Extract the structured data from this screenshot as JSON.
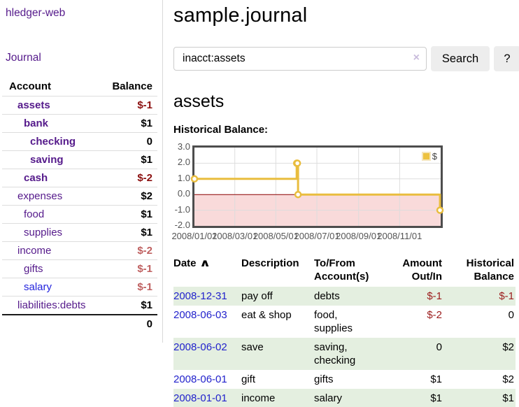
{
  "app": {
    "brand": "hledger-web",
    "nav_journal": "Journal"
  },
  "sidebar": {
    "columns": {
      "account": "Account",
      "balance": "Balance"
    },
    "accounts": [
      {
        "name": "assets",
        "depth": 1,
        "balance": "$-1",
        "matched": true,
        "tone": "strong-neg",
        "link": "purple"
      },
      {
        "name": "bank",
        "depth": 2,
        "balance": "$1",
        "matched": true,
        "tone": "pos",
        "link": "purple"
      },
      {
        "name": "checking",
        "depth": 3,
        "balance": "0",
        "matched": true,
        "tone": "pos",
        "link": "purple"
      },
      {
        "name": "saving",
        "depth": 3,
        "balance": "$1",
        "matched": true,
        "tone": "pos",
        "link": "purple"
      },
      {
        "name": "cash",
        "depth": 2,
        "balance": "$-2",
        "matched": true,
        "tone": "strong-neg",
        "link": "purple"
      },
      {
        "name": "expenses",
        "depth": 1,
        "balance": "$2",
        "matched": false,
        "tone": "pos",
        "link": "purple"
      },
      {
        "name": "food",
        "depth": 2,
        "balance": "$1",
        "matched": false,
        "tone": "pos",
        "link": "purple"
      },
      {
        "name": "supplies",
        "depth": 2,
        "balance": "$1",
        "matched": false,
        "tone": "pos",
        "link": "purple"
      },
      {
        "name": "income",
        "depth": 1,
        "balance": "$-2",
        "matched": false,
        "tone": "soft-neg",
        "link": "purple"
      },
      {
        "name": "gifts",
        "depth": 2,
        "balance": "$-1",
        "matched": false,
        "tone": "soft-neg",
        "link": "purple"
      },
      {
        "name": "salary",
        "depth": 2,
        "balance": "$-1",
        "matched": false,
        "tone": "soft-neg",
        "link": "blue"
      },
      {
        "name": "liabilities:debts",
        "depth": 1,
        "balance": "$1",
        "matched": false,
        "tone": "pos",
        "link": "purple"
      }
    ],
    "total": "0"
  },
  "header": {
    "title": "sample.journal"
  },
  "search": {
    "value": "inacct:assets",
    "clear_icon": "×",
    "button": "Search",
    "help_button": "?"
  },
  "account_page": {
    "title": "assets",
    "chart_label": "Historical Balance:"
  },
  "chart_data": {
    "type": "line",
    "title": "Historical Balance",
    "step": true,
    "series": [
      {
        "name": "$",
        "color": "#e9bd3e",
        "points": [
          [
            "2008-01-01",
            1
          ],
          [
            "2008-06-01",
            2
          ],
          [
            "2008-06-02",
            2
          ],
          [
            "2008-06-03",
            0
          ],
          [
            "2008-12-31",
            -1
          ]
        ]
      }
    ],
    "x_start": "2008-01-01",
    "x_span_days": 366,
    "x_ticks": [
      {
        "label": "2008/01/01",
        "day": 0
      },
      {
        "label": "2008/03/01",
        "day": 60
      },
      {
        "label": "2008/05/01",
        "day": 121
      },
      {
        "label": "2008/07/01",
        "day": 182
      },
      {
        "label": "2008/09/01",
        "day": 244
      },
      {
        "label": "2008/11/01",
        "day": 305
      }
    ],
    "y_ticks": [
      {
        "label": "3.0",
        "v": 3
      },
      {
        "label": "2.0",
        "v": 2
      },
      {
        "label": "1.0",
        "v": 1
      },
      {
        "label": "0.0",
        "v": 0
      },
      {
        "label": "-1.0",
        "v": -1
      },
      {
        "label": "-2.0",
        "v": -2
      }
    ],
    "ylim": [
      -2,
      3
    ],
    "grid": true,
    "legend_position": "top-right",
    "negative_region_color": "#f9dada",
    "zero_line_color": "#8b0000",
    "gridline_color": "#dddddd"
  },
  "register": {
    "sort_icon": "∧",
    "columns": [
      {
        "lines": "Date",
        "align": "left",
        "sorted": true
      },
      {
        "lines": "Description",
        "align": "left"
      },
      {
        "lines": "To/From\nAccount(s)",
        "align": "left"
      },
      {
        "lines": "Amount\nOut/In",
        "align": "right"
      },
      {
        "lines": "Historical\nBalance",
        "align": "right"
      }
    ],
    "rows": [
      {
        "date": "2008-12-31",
        "description": "pay off",
        "accounts": "debts",
        "amount": "$-1",
        "amount_negative": true,
        "balance": "$-1",
        "balance_negative": true,
        "green": true
      },
      {
        "date": "2008-06-03",
        "description": "eat & shop",
        "accounts": "food, supplies",
        "amount": "$-2",
        "amount_negative": true,
        "balance": "0",
        "balance_negative": false,
        "green": false
      },
      {
        "date": "2008-06-02",
        "description": "save",
        "accounts": "saving, checking",
        "amount": "0",
        "amount_negative": false,
        "balance": "$2",
        "balance_negative": false,
        "green": true
      },
      {
        "date": "2008-06-01",
        "description": "gift",
        "accounts": "gifts",
        "amount": "$1",
        "amount_negative": false,
        "balance": "$2",
        "balance_negative": false,
        "green": false
      },
      {
        "date": "2008-01-01",
        "description": "income",
        "accounts": "salary",
        "amount": "$1",
        "amount_negative": false,
        "balance": "$1",
        "balance_negative": false,
        "green": true
      }
    ]
  }
}
